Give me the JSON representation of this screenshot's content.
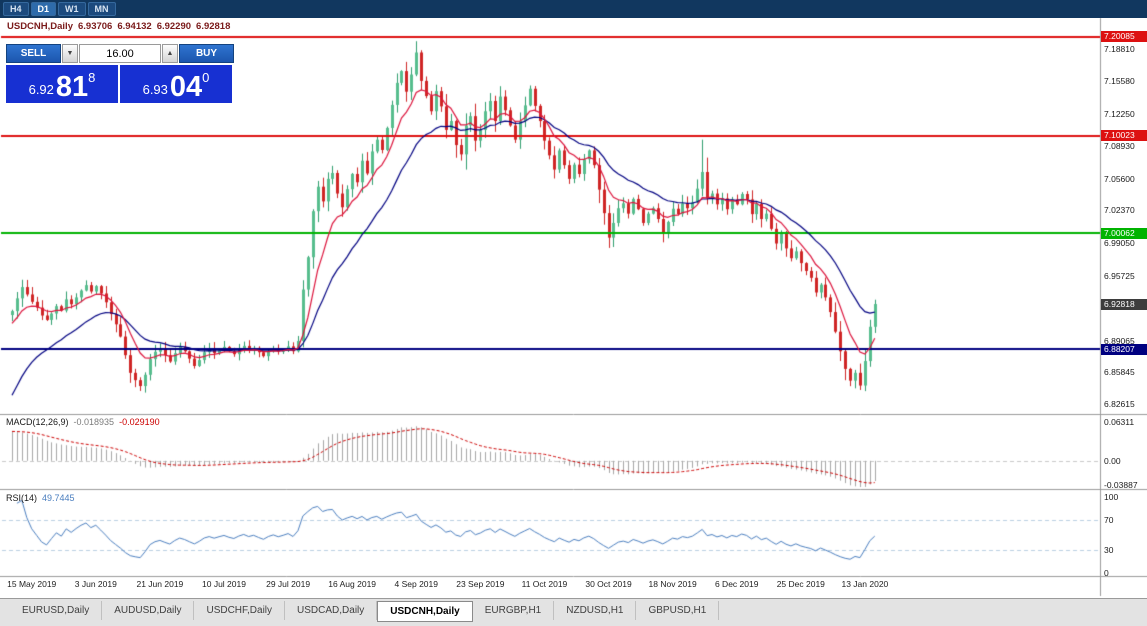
{
  "toolbar": {
    "timeframes": [
      {
        "label": "H4",
        "active": false
      },
      {
        "label": "D1",
        "active": true
      },
      {
        "label": "W1",
        "active": false
      },
      {
        "label": "MN",
        "active": false
      }
    ]
  },
  "chart_header": {
    "symbol": "USDCNH,Daily",
    "open": "6.93706",
    "high": "6.94132",
    "low": "6.92290",
    "close": "6.92818"
  },
  "trade_panel": {
    "sell_label": "SELL",
    "buy_label": "BUY",
    "volume": "16.00",
    "spin_down": "▼",
    "spin_up": "▲",
    "bid": {
      "prefix": "6.92",
      "big": "81",
      "pip": "8"
    },
    "ask": {
      "prefix": "6.93",
      "big": "04",
      "pip": "0"
    }
  },
  "colors": {
    "up": "#2f9e6e",
    "up_body": "#57bd8d",
    "down": "#cf2525",
    "axis_text": "#1a1a1a"
  },
  "chart_data": {
    "type": "candlestick",
    "symbol": "USDCNH",
    "timeframe": "Daily",
    "ylim": [
      6.818,
      7.21
    ],
    "closes": [
      6.921,
      6.934,
      6.9455,
      6.938,
      6.9305,
      6.9245,
      6.9165,
      6.912,
      6.9185,
      6.926,
      6.9215,
      6.933,
      6.928,
      6.935,
      6.942,
      6.9475,
      6.941,
      6.9465,
      6.939,
      6.93,
      6.918,
      6.9075,
      6.895,
      6.876,
      6.858,
      6.8505,
      6.8445,
      6.856,
      6.872,
      6.8795,
      6.883,
      6.876,
      6.8695,
      6.878,
      6.8845,
      6.88,
      6.8725,
      6.865,
      6.871,
      6.879,
      6.8825,
      6.878,
      6.8815,
      6.8845,
      6.88,
      6.877,
      6.882,
      6.8855,
      6.881,
      6.8835,
      6.879,
      6.875,
      6.88,
      6.883,
      6.8795,
      6.882,
      6.885,
      6.88,
      6.8905,
      6.943,
      6.976,
      7.023,
      7.048,
      7.033,
      7.056,
      7.062,
      7.041,
      7.027,
      7.0455,
      7.061,
      7.0525,
      7.0745,
      7.0615,
      7.084,
      7.096,
      7.0855,
      7.108,
      7.1315,
      7.154,
      7.166,
      7.145,
      7.1625,
      7.185,
      7.156,
      7.1405,
      7.125,
      7.1455,
      7.13,
      7.106,
      7.115,
      7.0905,
      7.081,
      7.1105,
      7.12,
      7.095,
      7.106,
      7.125,
      7.1355,
      7.115,
      7.14,
      7.126,
      7.1105,
      7.096,
      7.115,
      7.131,
      7.148,
      7.1305,
      7.115,
      7.095,
      7.08,
      7.0655,
      7.085,
      7.07,
      7.056,
      7.0705,
      7.061,
      7.076,
      7.085,
      7.07,
      7.045,
      7.021,
      6.996,
      7.011,
      7.026,
      7.031,
      7.0205,
      7.0355,
      7.025,
      7.011,
      7.0205,
      7.026,
      7.015,
      7.001,
      7.012,
      7.0255,
      7.02,
      7.031,
      7.026,
      7.032,
      7.046,
      7.063,
      7.036,
      7.041,
      7.03,
      7.036,
      7.025,
      7.035,
      7.03,
      7.0405,
      7.035,
      7.02,
      7.0305,
      7.015,
      7.0205,
      7.005,
      6.99,
      7.0005,
      6.985,
      6.975,
      6.982,
      6.97,
      6.962,
      6.955,
      6.94,
      6.948,
      6.935,
      6.92,
      6.9,
      6.88,
      6.862,
      6.85,
      6.858,
      6.845,
      6.87,
      6.905,
      6.9282
    ],
    "wick_overrides": {
      "2": {
        "high": 6.953
      },
      "26": {
        "low": 6.8395
      },
      "59": {
        "low": 6.884
      },
      "82": {
        "high": 7.1965
      },
      "121": {
        "low": 6.9855
      },
      "140": {
        "high": 7.096
      },
      "172": {
        "low": 6.8405
      }
    },
    "x_labels": [
      "15 May 2019",
      "3 Jun 2019",
      "21 Jun 2019",
      "10 Jul 2019",
      "29 Jul 2019",
      "16 Aug 2019",
      "4 Sep 2019",
      "23 Sep 2019",
      "11 Oct 2019",
      "30 Oct 2019",
      "18 Nov 2019",
      "6 Dec 2019",
      "25 Dec 2019",
      "13 Jan 2020"
    ],
    "x_label_start_index": 4,
    "x_label_step": 13,
    "price_ticks": [
      "7.18810",
      "7.15580",
      "7.12250",
      "7.08930",
      "7.05600",
      "7.02370",
      "6.99050",
      "6.95725",
      "6.89065",
      "6.85845",
      "6.82615"
    ],
    "levels": [
      {
        "label": "7.20085",
        "price": 7.20085,
        "color": "#dd1111",
        "type": "resistance"
      },
      {
        "label": "7.10023",
        "price": 7.10023,
        "color": "#dd1111",
        "type": "resistance"
      },
      {
        "label": "7.00062",
        "price": 7.00062,
        "color": "#00b300",
        "type": "support"
      },
      {
        "label": "6.88207",
        "price": 6.88207,
        "color": "#000080",
        "type": "support"
      }
    ],
    "current_price": {
      "label": "6.92818",
      "price": 6.92818,
      "badge_color": "#3d3d3d"
    },
    "moving_averages": [
      {
        "period": 8,
        "method": "ema",
        "color": "#dc143c",
        "init": 6.905
      },
      {
        "period": 20,
        "method": "ema",
        "color": "#000080",
        "init": 6.826
      }
    ],
    "indicators": {
      "macd": {
        "name": "MACD(12,26,9)",
        "fast": 12,
        "slow": 26,
        "signal": 9,
        "fast_init": 6.903,
        "slow_init": 6.853,
        "value_main": "-0.018935",
        "value_signal": "-0.029190",
        "axis": [
          {
            "label": "0.06311",
            "value": 0.06311
          },
          {
            "label": "0.00",
            "value": 0
          },
          {
            "label": "-0.03887",
            "value": -0.03887
          }
        ],
        "ylim": [
          -0.0425,
          0.0695
        ],
        "hist_color": "#a6a6a6",
        "signal_color": "#cc0000"
      },
      "rsi": {
        "name": "RSI(14)",
        "period": 14,
        "value": "49.7445",
        "axis": [
          {
            "label": "100",
            "value": 100
          },
          {
            "label": "70",
            "value": 70
          },
          {
            "label": "30",
            "value": 30
          },
          {
            "label": "0",
            "value": 0
          }
        ],
        "levels": [
          70,
          30
        ],
        "ylim": [
          0,
          100
        ],
        "color": "#4a7ebf",
        "level_color": "#b9cfe2"
      }
    }
  },
  "tabs": {
    "items": [
      "EURUSD,Daily",
      "AUDUSD,Daily",
      "USDCHF,Daily",
      "USDCAD,Daily",
      "USDCNH,Daily",
      "EURGBP,H1",
      "NZDUSD,H1",
      "GBPUSD,H1"
    ],
    "active_index": 4
  }
}
